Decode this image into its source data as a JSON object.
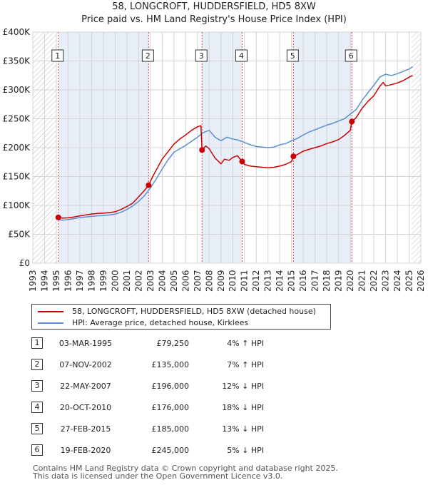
{
  "header": {
    "title_line1": "58, LONGCROFT, HUDDERSFIELD, HD5 8XW",
    "title_line2": "Price paid vs. HM Land Registry's House Price Index (HPI)"
  },
  "chart_data": {
    "type": "line",
    "title": "58, LONGCROFT, HUDDERSFIELD, HD5 8XW — Price paid vs. HM Land Registry's House Price Index (HPI)",
    "xlabel": "",
    "ylabel": "",
    "xlim": [
      1993,
      2026
    ],
    "ylim": [
      0,
      400000
    ],
    "x_ticks": [
      "1993",
      "1994",
      "1995",
      "1996",
      "1997",
      "1998",
      "1999",
      "2000",
      "2001",
      "2002",
      "2003",
      "2004",
      "2005",
      "2006",
      "2007",
      "2008",
      "2009",
      "2010",
      "2011",
      "2012",
      "2013",
      "2014",
      "2015",
      "2016",
      "2017",
      "2018",
      "2019",
      "2020",
      "2021",
      "2022",
      "2023",
      "2024",
      "2025",
      "2026"
    ],
    "y_ticks": [
      {
        "value": 0,
        "label": "£0"
      },
      {
        "value": 50000,
        "label": "£50K"
      },
      {
        "value": 100000,
        "label": "£100K"
      },
      {
        "value": 150000,
        "label": "£150K"
      },
      {
        "value": 200000,
        "label": "£200K"
      },
      {
        "value": 250000,
        "label": "£250K"
      },
      {
        "value": 300000,
        "label": "£300K"
      },
      {
        "value": 350000,
        "label": "£350K"
      },
      {
        "value": 400000,
        "label": "£400K"
      }
    ],
    "grid": true,
    "hatched_ranges": [
      [
        1993,
        1995.0
      ],
      [
        2025.2,
        2026
      ]
    ],
    "shaded_ranges": [
      [
        1995.17,
        2002.85
      ],
      [
        2007.39,
        2010.8
      ],
      [
        2015.16,
        2020.13
      ]
    ],
    "series": [
      {
        "name": "58, LONGCROFT, HUDDERSFIELD, HD5 8XW (detached house)",
        "color": "#cc0000",
        "x": [
          1995.17,
          1995.5,
          1996,
          1996.5,
          1997,
          1997.5,
          1998,
          1998.5,
          1999,
          1999.5,
          2000,
          2000.5,
          2001,
          2001.5,
          2002,
          2002.5,
          2002.85,
          2003.2,
          2003.6,
          2004,
          2004.5,
          2005,
          2005.5,
          2006,
          2006.5,
          2007,
          2007.3,
          2007.39,
          2007.7,
          2008,
          2008.5,
          2009,
          2009.3,
          2009.7,
          2010,
          2010.4,
          2010.8,
          2011,
          2011.5,
          2012,
          2012.5,
          2013,
          2013.5,
          2014,
          2014.5,
          2015,
          2015.16,
          2015.5,
          2016,
          2016.5,
          2017,
          2017.5,
          2018,
          2018.5,
          2019,
          2019.5,
          2020,
          2020.13,
          2020.5,
          2021,
          2021.5,
          2022,
          2022.5,
          2022.8,
          2023,
          2023.5,
          2024,
          2024.5,
          2025,
          2025.3
        ],
        "y": [
          79250,
          78000,
          78500,
          80000,
          82000,
          83500,
          85000,
          86000,
          86500,
          87500,
          89000,
          93000,
          98000,
          104000,
          115000,
          126000,
          135000,
          150000,
          165000,
          180000,
          193000,
          206000,
          215000,
          222000,
          230000,
          236000,
          238000,
          196000,
          203000,
          198000,
          182000,
          172000,
          180000,
          178000,
          183000,
          186000,
          176000,
          171000,
          168000,
          167000,
          166000,
          165000,
          166000,
          168000,
          171000,
          176000,
          185000,
          188000,
          194000,
          197000,
          200000,
          203000,
          207000,
          210000,
          214000,
          221000,
          230000,
          245000,
          252000,
          268000,
          280000,
          290000,
          306000,
          313000,
          307000,
          309000,
          312000,
          316000,
          322000,
          325000
        ]
      },
      {
        "name": "HPI: Average price, detached house, Kirklees",
        "color": "#5b8fd0",
        "x": [
          1995.0,
          1995.5,
          1996,
          1996.5,
          1997,
          1997.5,
          1998,
          1998.5,
          1999,
          1999.5,
          2000,
          2000.5,
          2001,
          2001.5,
          2002,
          2002.5,
          2003,
          2003.5,
          2004,
          2004.5,
          2005,
          2005.5,
          2006,
          2006.5,
          2007,
          2007.5,
          2008,
          2008.5,
          2009,
          2009.5,
          2010,
          2010.5,
          2011,
          2011.5,
          2012,
          2012.5,
          2013,
          2013.5,
          2014,
          2014.5,
          2015,
          2015.5,
          2016,
          2016.5,
          2017,
          2017.5,
          2018,
          2018.5,
          2019,
          2019.5,
          2020,
          2020.5,
          2021,
          2021.5,
          2022,
          2022.5,
          2023,
          2023.5,
          2024,
          2024.5,
          2025,
          2025.3
        ],
        "y": [
          76000,
          74500,
          75500,
          77000,
          79000,
          80000,
          81000,
          82000,
          82500,
          83500,
          85000,
          88000,
          93000,
          99000,
          107000,
          117000,
          130000,
          146000,
          163000,
          179000,
          192000,
          198000,
          204000,
          211000,
          218000,
          226000,
          230000,
          218000,
          212000,
          218000,
          215000,
          213000,
          209000,
          205000,
          202000,
          201000,
          200000,
          201000,
          205000,
          207000,
          212000,
          216000,
          222000,
          227000,
          231000,
          235000,
          239000,
          242000,
          246000,
          250000,
          258000,
          266000,
          282000,
          295000,
          308000,
          322000,
          327000,
          325000,
          328000,
          332000,
          336000,
          340000
        ]
      }
    ],
    "sales": [
      {
        "num": "1",
        "x": 1995.17,
        "y": 79250
      },
      {
        "num": "2",
        "x": 2002.85,
        "y": 135000
      },
      {
        "num": "3",
        "x": 2007.39,
        "y": 196000
      },
      {
        "num": "4",
        "x": 2010.8,
        "y": 176000
      },
      {
        "num": "5",
        "x": 2015.16,
        "y": 185000
      },
      {
        "num": "6",
        "x": 2020.13,
        "y": 245000
      }
    ],
    "colors": {
      "grid": "#d4d4d4",
      "shade": "#e8eef8",
      "marker_line": "#cc0000",
      "marker_fill": "#cc0000"
    }
  },
  "legend": {
    "property_label": "58, LONGCROFT, HUDDERSFIELD, HD5 8XW (detached house)",
    "hpi_label": "HPI: Average price, detached house, Kirklees"
  },
  "sales_table": [
    {
      "num": "1",
      "date": "03-MAR-1995",
      "price": "£79,250",
      "hpi": "4% ↑ HPI"
    },
    {
      "num": "2",
      "date": "07-NOV-2002",
      "price": "£135,000",
      "hpi": "7% ↑ HPI"
    },
    {
      "num": "3",
      "date": "22-MAY-2007",
      "price": "£196,000",
      "hpi": "12% ↓ HPI"
    },
    {
      "num": "4",
      "date": "20-OCT-2010",
      "price": "£176,000",
      "hpi": "18% ↓ HPI"
    },
    {
      "num": "5",
      "date": "27-FEB-2015",
      "price": "£185,000",
      "hpi": "13% ↓ HPI"
    },
    {
      "num": "6",
      "date": "19-FEB-2020",
      "price": "£245,000",
      "hpi": "5% ↓ HPI"
    }
  ],
  "footer": {
    "line1": "Contains HM Land Registry data © Crown copyright and database right 2025.",
    "line2": "This data is licensed under the Open Government Licence v3.0."
  }
}
